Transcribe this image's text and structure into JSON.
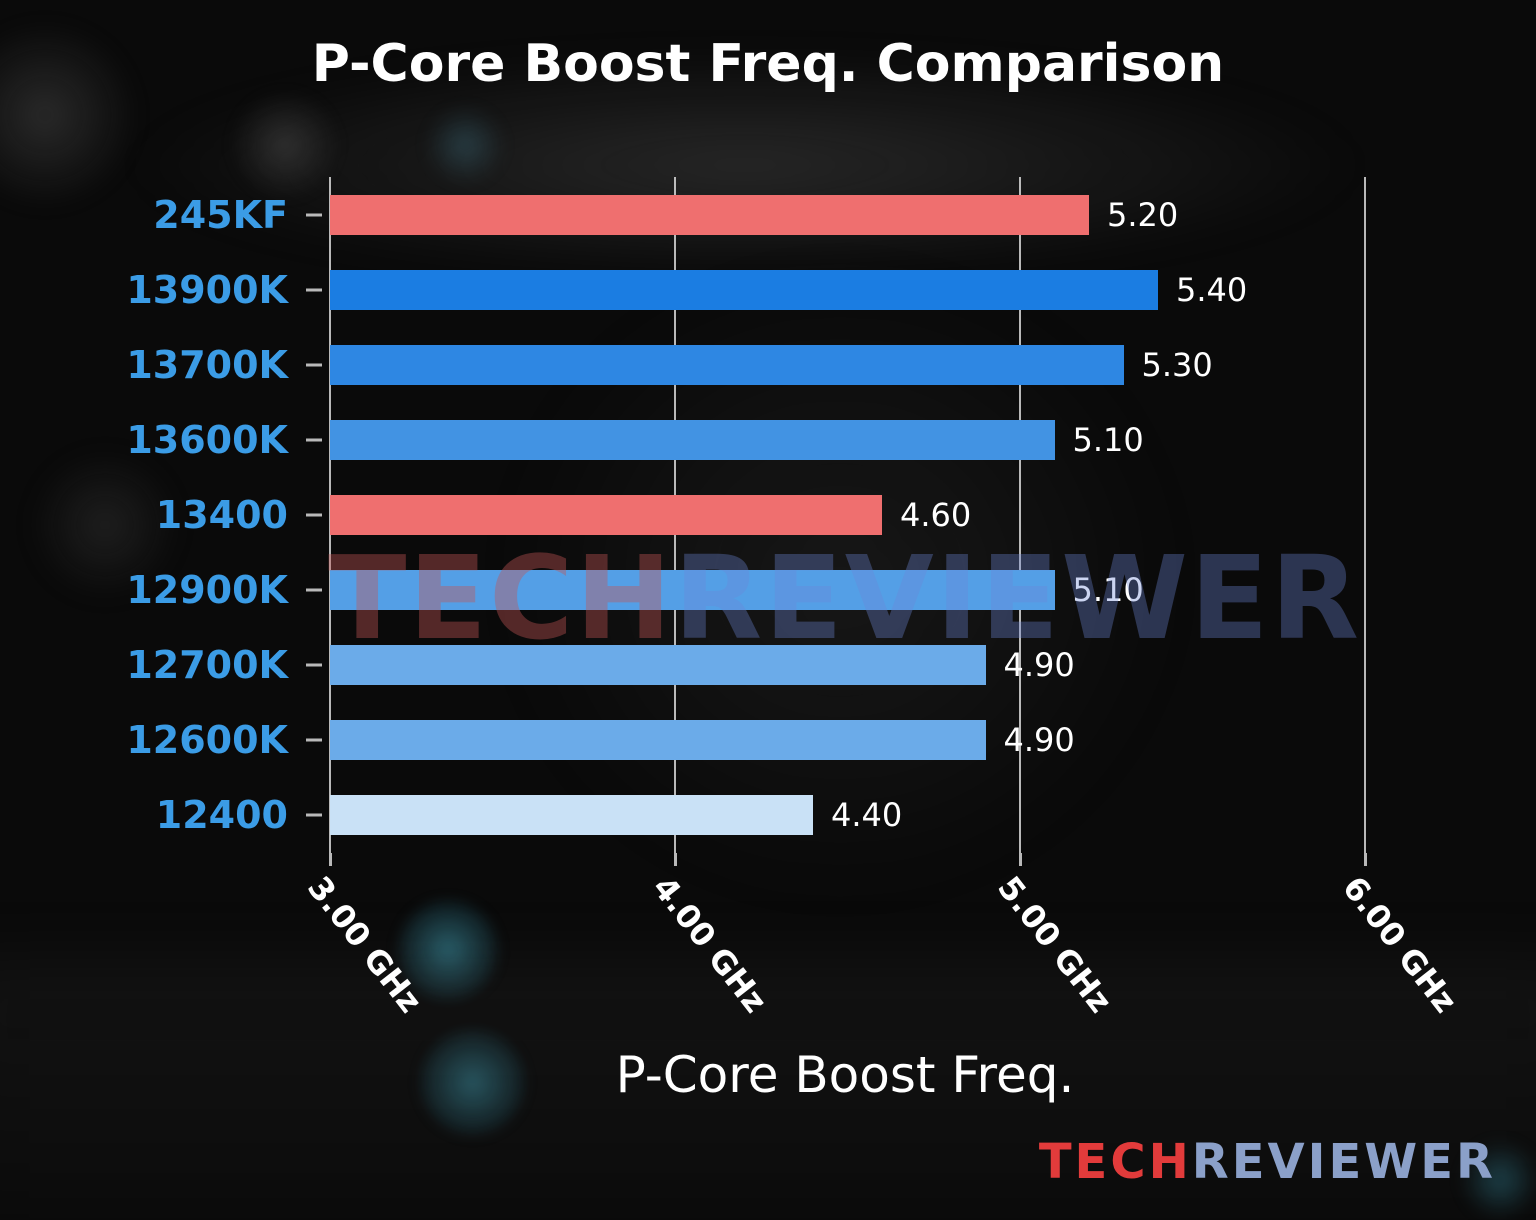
{
  "chart_data": {
    "type": "bar",
    "orientation": "horizontal",
    "title": "P-Core Boost Freq. Comparison",
    "xlabel": "P-Core Boost Freq.",
    "categories": [
      "245KF",
      "13900K",
      "13700K",
      "13600K",
      "13400",
      "12900K",
      "12700K",
      "12600K",
      "12400"
    ],
    "values": [
      5.2,
      5.4,
      5.3,
      5.1,
      4.6,
      5.1,
      4.9,
      4.9,
      4.4
    ],
    "value_labels": [
      "5.20",
      "5.40",
      "5.30",
      "5.10",
      "4.60",
      "5.10",
      "4.90",
      "4.90",
      "4.40"
    ],
    "bar_colors": [
      "#ef6f6f",
      "#1b7de2",
      "#2e87e3",
      "#4293e3",
      "#ef6f6f",
      "#549fe6",
      "#6babe9",
      "#6babe9",
      "#c9e1f6"
    ],
    "category_label_color": "#3b9ce6",
    "value_label_color": "#ffffff",
    "tick_label_color": "#ffffff",
    "x_ticks": [
      {
        "label": "3.00 GHz",
        "value": 3.0
      },
      {
        "label": "4.00 GHz",
        "value": 4.0
      },
      {
        "label": "5.00 GHz",
        "value": 5.0
      },
      {
        "label": "6.00 GHz",
        "value": 6.0
      }
    ],
    "xlim": [
      3.0,
      6.2
    ],
    "grid": true,
    "gridline_color": "rgba(216,216,216,0.85)",
    "legend": null
  },
  "watermark": {
    "tech": "TECH",
    "reviewer": "REVIEWER",
    "tech_color": "rgba(195,85,85,0.40)",
    "reviewer_color": "rgba(110,135,215,0.35)"
  },
  "logo": {
    "tech": "TECH",
    "reviewer": "REVIEWER",
    "tech_color": "#e23b3b",
    "reviewer_color": "#8ba0c9"
  }
}
